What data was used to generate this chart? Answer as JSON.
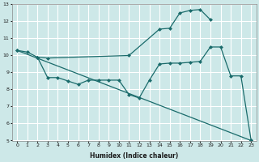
{
  "xlabel": "Humidex (Indice chaleur)",
  "bg_color": "#cde8e8",
  "grid_color": "#ffffff",
  "line_color": "#1a6b6b",
  "xlim": [
    -0.5,
    23.5
  ],
  "ylim": [
    5,
    13
  ],
  "xticks": [
    0,
    1,
    2,
    3,
    4,
    5,
    6,
    7,
    8,
    9,
    10,
    11,
    12,
    13,
    14,
    15,
    16,
    17,
    18,
    19,
    20,
    21,
    22,
    23
  ],
  "yticks": [
    5,
    6,
    7,
    8,
    9,
    10,
    11,
    12,
    13
  ],
  "line1_x": [
    0,
    1,
    2,
    3,
    11,
    14,
    15,
    16,
    17,
    18,
    19
  ],
  "line1_y": [
    10.3,
    10.2,
    9.9,
    9.85,
    10.0,
    11.55,
    11.6,
    12.5,
    12.65,
    12.7,
    12.1
  ],
  "line2_x": [
    2,
    3,
    4,
    5,
    6,
    7,
    8,
    9,
    10,
    11,
    12,
    13,
    14,
    15,
    16,
    17,
    18,
    19,
    20,
    21,
    22,
    23
  ],
  "line2_y": [
    9.9,
    8.7,
    8.7,
    8.5,
    8.3,
    8.55,
    8.55,
    8.55,
    8.55,
    7.7,
    7.5,
    8.55,
    9.5,
    9.55,
    9.55,
    9.6,
    9.65,
    10.5,
    10.5,
    8.8,
    8.8,
    5.0
  ],
  "line3_x": [
    0,
    23
  ],
  "line3_y": [
    10.3,
    5.0
  ]
}
